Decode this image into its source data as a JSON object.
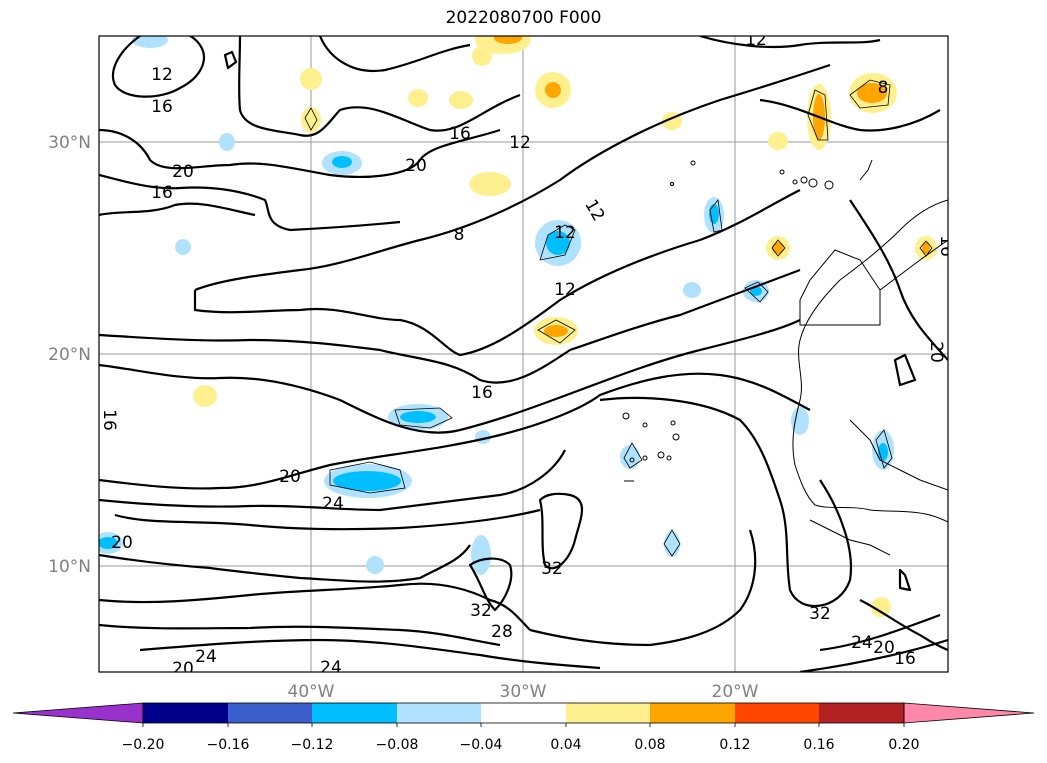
{
  "title": "2022080700 F000",
  "lat_labels": [
    "30°N",
    "20°N",
    "10°N"
  ],
  "lon_labels": [
    "40°W",
    "30°W",
    "20°W"
  ],
  "colorbar": {
    "ticks": [
      "−0.20",
      "−0.16",
      "−0.12",
      "−0.08",
      "−0.04",
      "0.04",
      "0.08",
      "0.12",
      "0.16",
      "0.20"
    ],
    "colors": [
      "#9932cc",
      "#00008b",
      "#3a5fcd",
      "#00bfff",
      "#b0e2ff",
      "#ffffff",
      "#fff08f",
      "#ffa500",
      "#ff4500",
      "#b22222",
      "#ff88aa"
    ]
  },
  "contour_labels": [
    "12",
    "16",
    "20",
    "16",
    "16",
    "8",
    "12",
    "12",
    "12",
    "20",
    "16",
    "20",
    "24",
    "20",
    "32",
    "32",
    "28",
    "32",
    "24",
    "20",
    "16",
    "24",
    "20",
    "24",
    "8",
    "16",
    "20",
    "16",
    "12",
    "12"
  ]
}
